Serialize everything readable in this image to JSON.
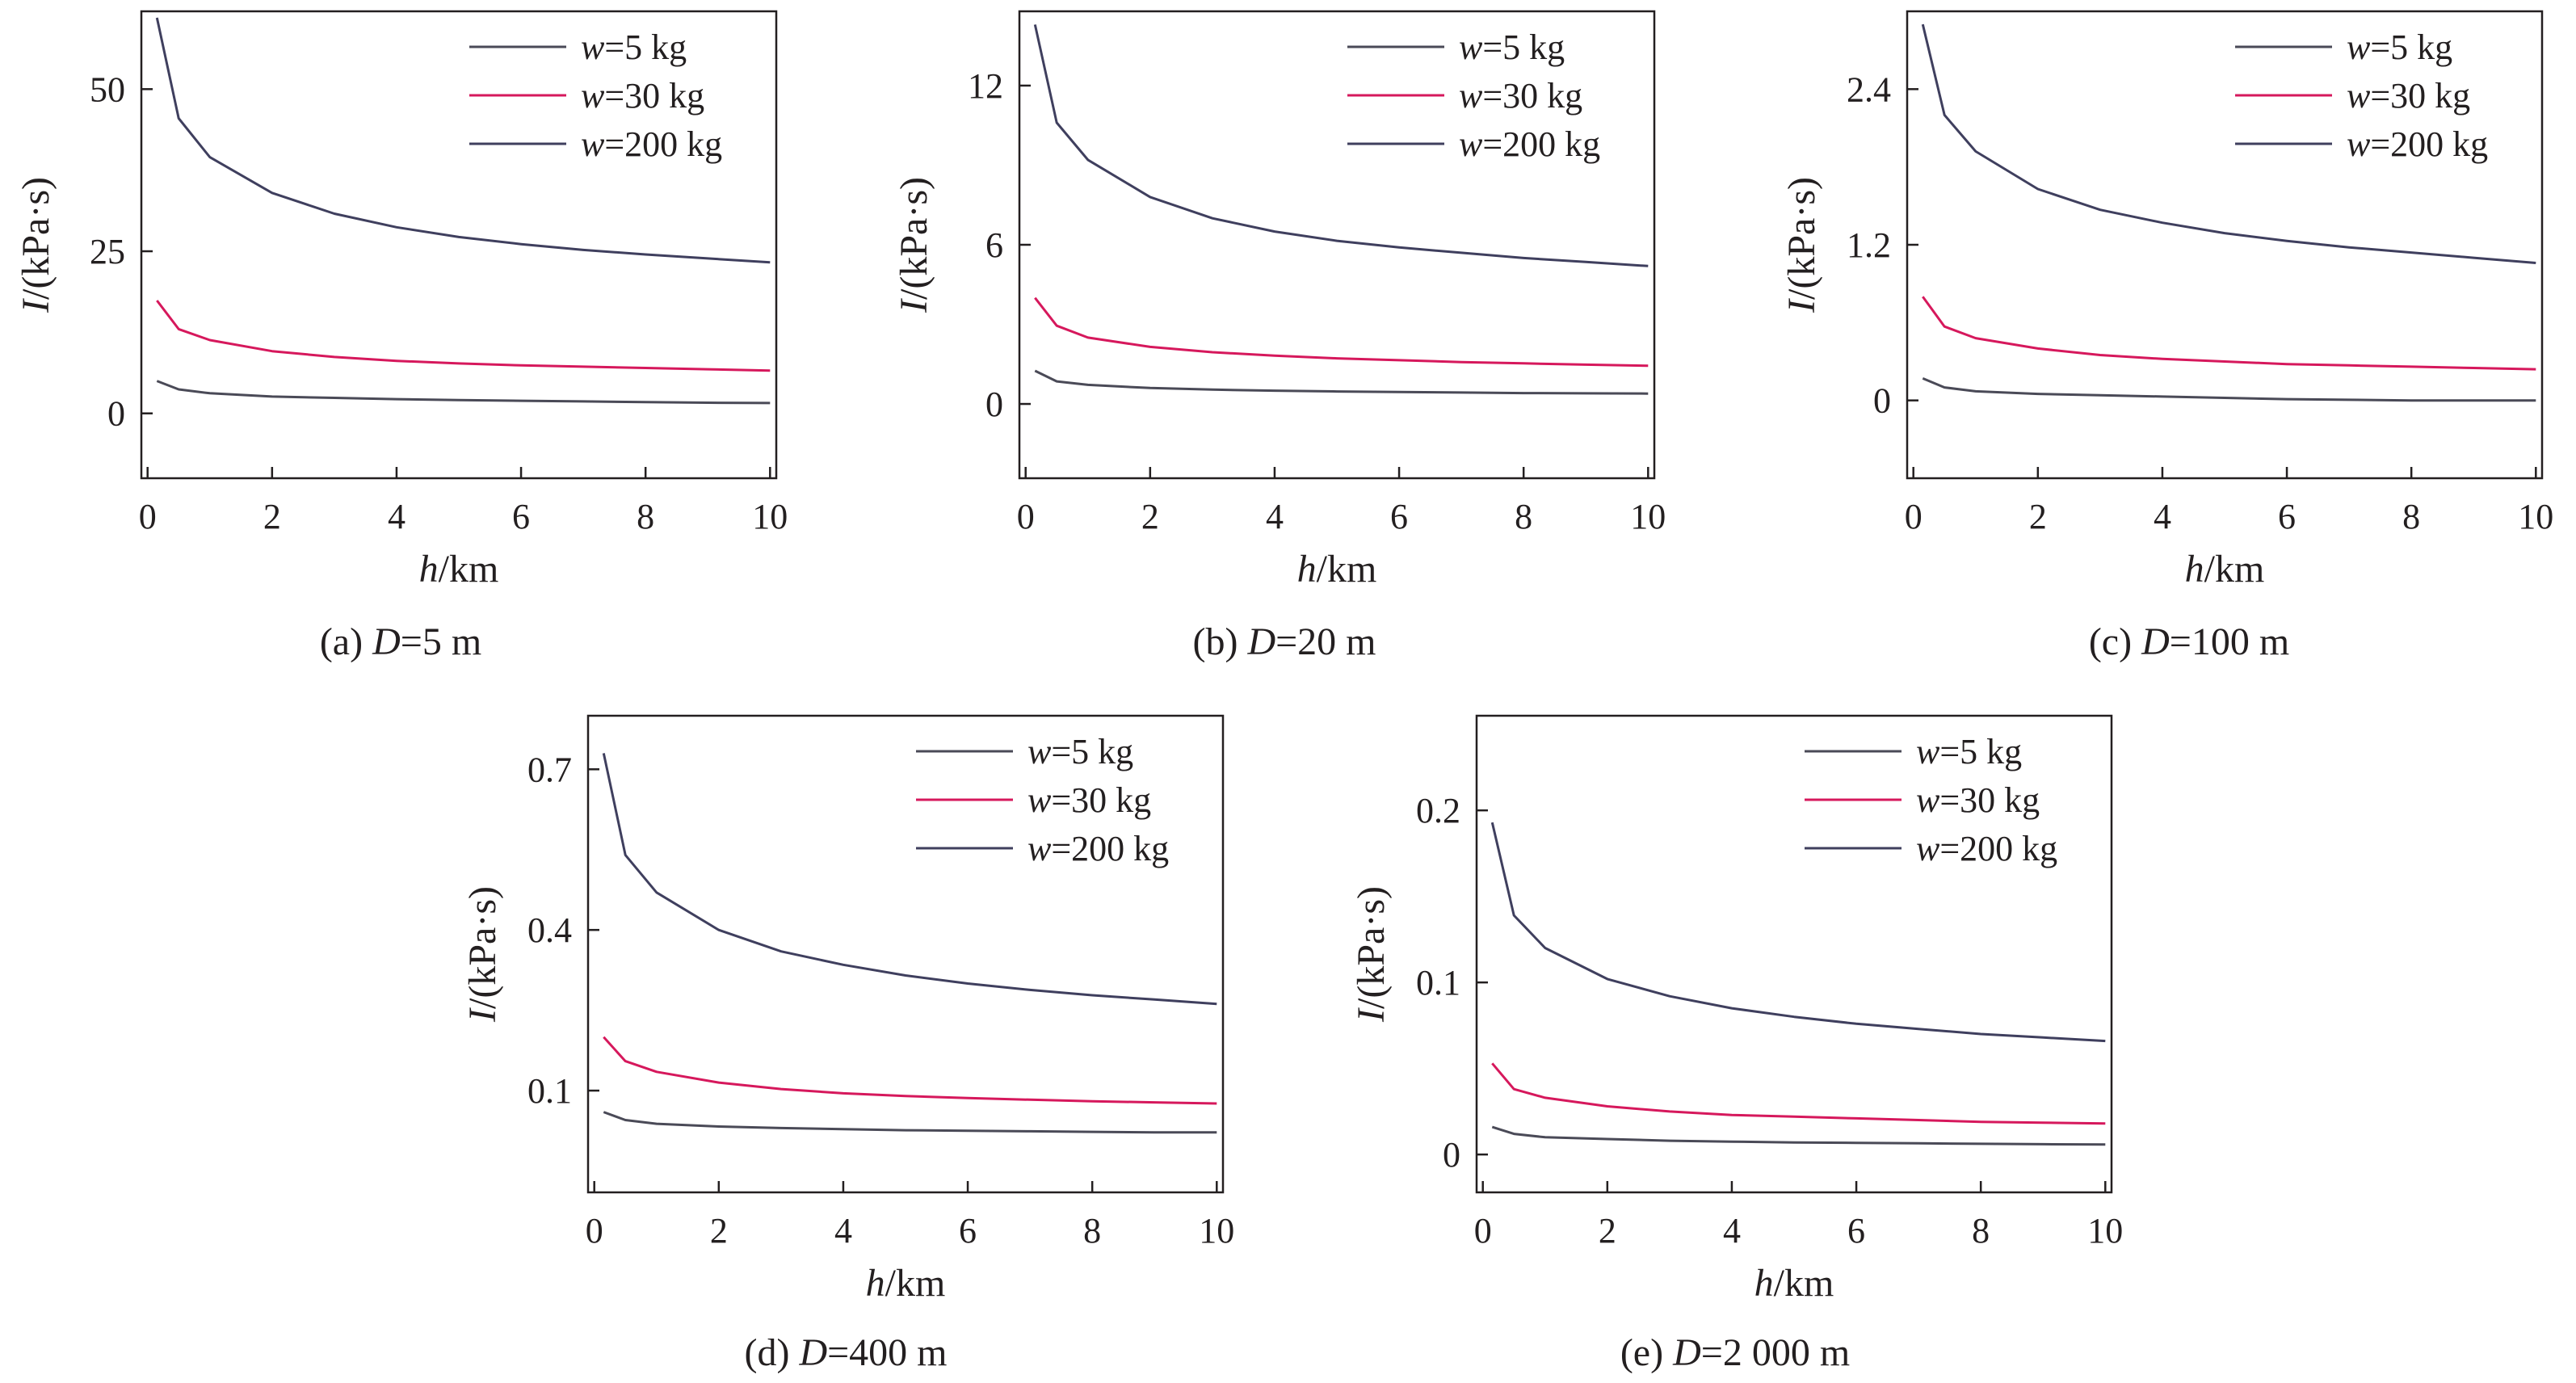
{
  "chart_data": [
    {
      "type": "line",
      "caption": {
        "prefix": "(a) ",
        "var": "D",
        "rest": "=5 m"
      },
      "xlabel": {
        "var": "h",
        "rest": "/km"
      },
      "ylabel": {
        "var": "I",
        "rest": "/(kPa·s)"
      },
      "xlim": [
        -0.1,
        10.1
      ],
      "ylim": [
        -10,
        62
      ],
      "xticks": [
        "0",
        "2",
        "4",
        "6",
        "8",
        "10"
      ],
      "yticks": [
        {
          "value": 0,
          "label": "0"
        },
        {
          "value": 25,
          "label": "25"
        },
        {
          "value": 50,
          "label": "50"
        }
      ],
      "legend_position": "top-right",
      "x": [
        0.15,
        0.5,
        1,
        2,
        3,
        4,
        5,
        6,
        7,
        8,
        9,
        10
      ],
      "series": [
        {
          "name": {
            "var": "w",
            "rest": "=5 kg"
          },
          "color": "#4a4a57",
          "values": [
            5.0,
            3.7,
            3.1,
            2.6,
            2.4,
            2.2,
            2.05,
            1.95,
            1.85,
            1.75,
            1.65,
            1.6
          ]
        },
        {
          "name": {
            "var": "w",
            "rest": "=30 kg"
          },
          "color": "#d6185c",
          "values": [
            17.4,
            13.0,
            11.3,
            9.6,
            8.7,
            8.1,
            7.7,
            7.4,
            7.2,
            7.0,
            6.8,
            6.6
          ]
        },
        {
          "name": {
            "var": "w",
            "rest": "=200 kg"
          },
          "color": "#3f3f5e",
          "values": [
            61.0,
            45.5,
            39.5,
            34.0,
            30.8,
            28.7,
            27.2,
            26.1,
            25.2,
            24.5,
            23.9,
            23.3
          ]
        }
      ]
    },
    {
      "type": "line",
      "caption": {
        "prefix": "(b) ",
        "var": "D",
        "rest": "=20 m"
      },
      "xlabel": {
        "var": "h",
        "rest": "/km"
      },
      "ylabel": {
        "var": "I",
        "rest": "/(kPa·s)"
      },
      "xlim": [
        -0.1,
        10.1
      ],
      "ylim": [
        -2.8,
        14.8
      ],
      "xticks": [
        "0",
        "2",
        "4",
        "6",
        "8",
        "10"
      ],
      "yticks": [
        {
          "value": 0,
          "label": "0"
        },
        {
          "value": 6,
          "label": "6"
        },
        {
          "value": 12,
          "label": "12"
        }
      ],
      "legend_position": "top-right",
      "x": [
        0.15,
        0.5,
        1,
        2,
        3,
        4,
        5,
        6,
        7,
        8,
        9,
        10
      ],
      "series": [
        {
          "name": {
            "var": "w",
            "rest": "=5 kg"
          },
          "color": "#4a4a57",
          "values": [
            1.25,
            0.85,
            0.72,
            0.6,
            0.54,
            0.5,
            0.47,
            0.45,
            0.43,
            0.41,
            0.4,
            0.39
          ]
        },
        {
          "name": {
            "var": "w",
            "rest": "=30 kg"
          },
          "color": "#d6185c",
          "values": [
            4.0,
            2.95,
            2.5,
            2.15,
            1.95,
            1.82,
            1.72,
            1.65,
            1.58,
            1.53,
            1.48,
            1.44
          ]
        },
        {
          "name": {
            "var": "w",
            "rest": "=200 kg"
          },
          "color": "#3f3f5e",
          "values": [
            14.3,
            10.6,
            9.2,
            7.8,
            7.0,
            6.5,
            6.15,
            5.9,
            5.7,
            5.5,
            5.35,
            5.2
          ]
        }
      ]
    },
    {
      "type": "line",
      "caption": {
        "prefix": "(c) ",
        "var": "D",
        "rest": "=100 m"
      },
      "xlabel": {
        "var": "h",
        "rest": "/km"
      },
      "ylabel": {
        "var": "I",
        "rest": "/(kPa·s)"
      },
      "xlim": [
        -0.1,
        10.1
      ],
      "ylim": [
        -0.6,
        3.0
      ],
      "xticks": [
        "0",
        "2",
        "4",
        "6",
        "8",
        "10"
      ],
      "yticks": [
        {
          "value": 0,
          "label": "0"
        },
        {
          "value": 1.2,
          "label": "1.2"
        },
        {
          "value": 2.4,
          "label": "2.4"
        }
      ],
      "legend_position": "top-right",
      "x": [
        0.15,
        0.5,
        1,
        2,
        3,
        4,
        5,
        6,
        7,
        8,
        9,
        10
      ],
      "series": [
        {
          "name": {
            "var": "w",
            "rest": "=5 kg"
          },
          "color": "#4a4a57",
          "values": [
            0.17,
            0.1,
            0.07,
            0.05,
            0.04,
            0.03,
            0.02,
            0.01,
            0.005,
            0.0,
            0.0,
            0.0
          ]
        },
        {
          "name": {
            "var": "w",
            "rest": "=30 kg"
          },
          "color": "#d6185c",
          "values": [
            0.8,
            0.57,
            0.48,
            0.4,
            0.35,
            0.32,
            0.3,
            0.28,
            0.27,
            0.26,
            0.25,
            0.24
          ]
        },
        {
          "name": {
            "var": "w",
            "rest": "=200 kg"
          },
          "color": "#3f3f5e",
          "values": [
            2.9,
            2.2,
            1.92,
            1.63,
            1.47,
            1.37,
            1.29,
            1.23,
            1.18,
            1.14,
            1.1,
            1.06
          ]
        }
      ]
    },
    {
      "type": "line",
      "caption": {
        "prefix": "(d) ",
        "var": "D",
        "rest": "=400 m"
      },
      "xlabel": {
        "var": "h",
        "rest": "/km"
      },
      "ylabel": {
        "var": "I",
        "rest": "/(kPa·s)"
      },
      "xlim": [
        -0.1,
        10.1
      ],
      "ylim": [
        -0.09,
        0.8
      ],
      "xticks": [
        "0",
        "2",
        "4",
        "6",
        "8",
        "10"
      ],
      "yticks": [
        {
          "value": 0.1,
          "label": "0.1"
        },
        {
          "value": 0.4,
          "label": "0.4"
        },
        {
          "value": 0.7,
          "label": "0.7"
        }
      ],
      "legend_position": "top-right",
      "x": [
        0.15,
        0.5,
        1,
        2,
        3,
        4,
        5,
        6,
        7,
        8,
        9,
        10
      ],
      "series": [
        {
          "name": {
            "var": "w",
            "rest": "=5 kg"
          },
          "color": "#4a4a57",
          "values": [
            0.06,
            0.045,
            0.038,
            0.033,
            0.03,
            0.028,
            0.026,
            0.025,
            0.024,
            0.023,
            0.022,
            0.022
          ]
        },
        {
          "name": {
            "var": "w",
            "rest": "=30 kg"
          },
          "color": "#d6185c",
          "values": [
            0.2,
            0.155,
            0.135,
            0.115,
            0.103,
            0.095,
            0.09,
            0.086,
            0.083,
            0.08,
            0.078,
            0.076
          ]
        },
        {
          "name": {
            "var": "w",
            "rest": "=200 kg"
          },
          "color": "#3f3f5e",
          "values": [
            0.73,
            0.54,
            0.47,
            0.4,
            0.36,
            0.335,
            0.315,
            0.3,
            0.288,
            0.278,
            0.27,
            0.262
          ]
        }
      ]
    },
    {
      "type": "line",
      "caption": {
        "prefix": "(e) ",
        "var": "D",
        "rest": "=2 000 m"
      },
      "xlabel": {
        "var": "h",
        "rest": "/km"
      },
      "ylabel": {
        "var": "I",
        "rest": "/(kPa·s)"
      },
      "xlim": [
        -0.1,
        10.1
      ],
      "ylim": [
        -0.022,
        0.255
      ],
      "xticks": [
        "0",
        "2",
        "4",
        "6",
        "8",
        "10"
      ],
      "yticks": [
        {
          "value": 0,
          "label": "0"
        },
        {
          "value": 0.1,
          "label": "0.1"
        },
        {
          "value": 0.2,
          "label": "0.2"
        }
      ],
      "legend_position": "top-right",
      "x": [
        0.15,
        0.5,
        1,
        2,
        3,
        4,
        5,
        6,
        7,
        8,
        9,
        10
      ],
      "series": [
        {
          "name": {
            "var": "w",
            "rest": "=5 kg"
          },
          "color": "#4a4a57",
          "values": [
            0.016,
            0.012,
            0.01,
            0.009,
            0.008,
            0.0075,
            0.007,
            0.0068,
            0.0065,
            0.0062,
            0.006,
            0.0058
          ]
        },
        {
          "name": {
            "var": "w",
            "rest": "=30 kg"
          },
          "color": "#d6185c",
          "values": [
            0.053,
            0.038,
            0.033,
            0.028,
            0.025,
            0.023,
            0.022,
            0.021,
            0.02,
            0.019,
            0.0185,
            0.018
          ]
        },
        {
          "name": {
            "var": "w",
            "rest": "=200 kg"
          },
          "color": "#3f3f5e",
          "values": [
            0.193,
            0.139,
            0.12,
            0.102,
            0.092,
            0.085,
            0.08,
            0.076,
            0.073,
            0.07,
            0.068,
            0.066
          ]
        }
      ]
    }
  ]
}
